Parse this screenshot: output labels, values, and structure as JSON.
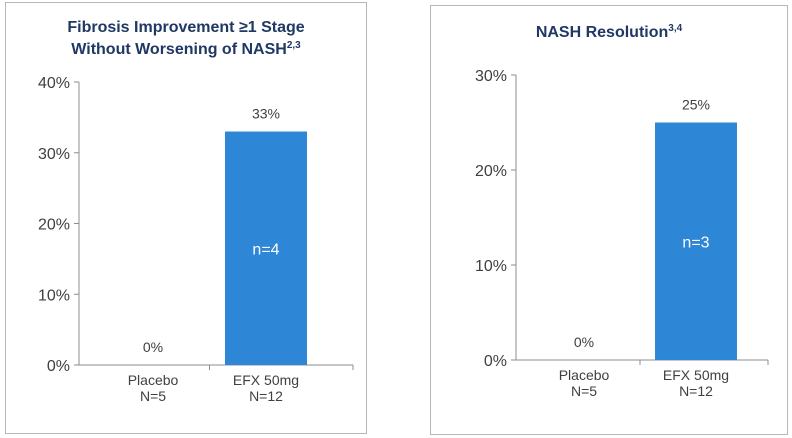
{
  "chart_data": [
    {
      "type": "bar",
      "title_line1": "Fibrosis Improvement ≥1 Stage",
      "title_line2": "Without Worsening of NASH",
      "title_superscript": "2,3",
      "categories": [
        "Placebo\nN=5",
        "EFX 50mg\nN=12"
      ],
      "values": [
        0,
        33
      ],
      "data_labels": [
        "0%",
        "33%"
      ],
      "inside_labels": [
        "",
        "n=4"
      ],
      "ylim": [
        0,
        40
      ],
      "yticks": [
        0,
        10,
        20,
        30,
        40
      ],
      "ytick_labels": [
        "0%",
        "10%",
        "20%",
        "30%",
        "40%"
      ],
      "xlabel": "",
      "ylabel": "",
      "grid": false,
      "bar_color": "#2e86d6"
    },
    {
      "type": "bar",
      "title_line1": "NASH Resolution",
      "title_line2": "",
      "title_superscript": "3,4",
      "categories": [
        "Placebo\nN=5",
        "EFX 50mg\nN=12"
      ],
      "values": [
        0,
        25
      ],
      "data_labels": [
        "0%",
        "25%"
      ],
      "inside_labels": [
        "",
        "n=3"
      ],
      "ylim": [
        0,
        30
      ],
      "yticks": [
        0,
        10,
        20,
        30
      ],
      "ytick_labels": [
        "0%",
        "10%",
        "20%",
        "30%"
      ],
      "xlabel": "",
      "ylabel": "",
      "grid": false,
      "bar_color": "#2e86d6"
    }
  ],
  "colors": {
    "title": "#1f3864",
    "axis": "#8c8c8c",
    "tick_text": "#404040",
    "label_text": "#404040",
    "inside_text": "#ffffff"
  }
}
